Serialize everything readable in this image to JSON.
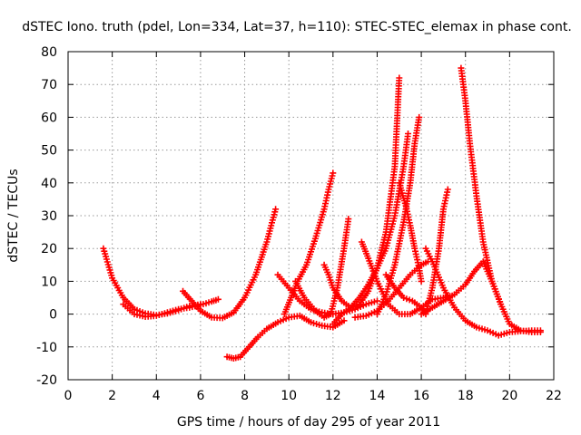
{
  "chart_data": {
    "type": "scatter",
    "title": "dSTEC Iono. truth (pdel, Lon=334, Lat=37, h=110): STEC-STEC_elemax in phase cont.",
    "xlabel": "GPS time / hours of day 295 of year 2011",
    "ylabel": "dSTEC  / TECUs",
    "xlim": [
      0,
      22
    ],
    "ylim": [
      -20,
      80
    ],
    "xticks": [
      "0",
      "2",
      "4",
      "6",
      "8",
      "10",
      "12",
      "14",
      "16",
      "18",
      "20",
      "22"
    ],
    "yticks": [
      "-20",
      "-10",
      "0",
      "10",
      "20",
      "30",
      "40",
      "50",
      "60",
      "70",
      "80"
    ],
    "grid": true,
    "marker": "+",
    "color": "#ff0000",
    "series": [
      {
        "x": [
          1.6,
          2.0,
          2.5,
          3.0,
          3.5,
          4.0,
          4.5,
          5.0,
          5.5,
          6.0
        ],
        "y": [
          20,
          11,
          5,
          1.5,
          0.2,
          -0.3,
          0.2,
          1.2,
          2.5,
          3.0
        ]
      },
      {
        "x": [
          2.5,
          3.0,
          3.5,
          4.0,
          4.5,
          5.0,
          5.5,
          6.0,
          6.5,
          6.8
        ],
        "y": [
          3,
          0,
          -0.8,
          -0.5,
          0.5,
          1.5,
          2.0,
          2.8,
          3.8,
          4.5
        ]
      },
      {
        "x": [
          5.2,
          5.6,
          6.0,
          6.5,
          7.0,
          7.5,
          8.0,
          8.5,
          9.0,
          9.4
        ],
        "y": [
          7,
          4,
          1,
          -1,
          -1.2,
          0.5,
          5,
          12,
          22,
          32
        ]
      },
      {
        "x": [
          7.2,
          7.5,
          7.8,
          8.2,
          8.6,
          9.0,
          9.5,
          10.0,
          10.5,
          11.0,
          11.5,
          12.0,
          12.5
        ],
        "y": [
          -13,
          -13.5,
          -13,
          -10,
          -7,
          -4.5,
          -2.5,
          -1,
          -0.5,
          -2.5,
          -3.5,
          -4,
          -2
        ]
      },
      {
        "x": [
          9.5,
          10.0,
          10.5,
          11.0,
          11.5,
          12.0,
          12.5,
          13.0,
          13.5,
          14.0
        ],
        "y": [
          12,
          8,
          4,
          1.5,
          0.5,
          0,
          0.5,
          1.5,
          3,
          4
        ]
      },
      {
        "x": [
          9.8,
          10.1,
          10.4,
          10.8,
          11.2,
          11.6,
          11.8,
          12.0
        ],
        "y": [
          0,
          5,
          10,
          15,
          23,
          32,
          38,
          43
        ]
      },
      {
        "x": [
          10.3,
          10.7,
          11.2,
          11.6,
          11.9,
          12.2,
          12.5,
          12.7
        ],
        "y": [
          10,
          5,
          1,
          -1,
          0,
          8,
          20,
          29
        ]
      },
      {
        "x": [
          11.6,
          11.8,
          12.0,
          12.4,
          12.8,
          13.2,
          13.6,
          14.0,
          14.4,
          14.8,
          15.0
        ],
        "y": [
          15,
          12,
          8,
          4,
          2,
          3,
          7,
          14,
          25,
          45,
          72
        ]
      },
      {
        "x": [
          12.0,
          12.4,
          12.8,
          13.2,
          13.6,
          14.0,
          14.4,
          14.8,
          15.2,
          15.4
        ],
        "y": [
          -3,
          0,
          2,
          5,
          9,
          14,
          20,
          30,
          45,
          55
        ]
      },
      {
        "x": [
          13.3,
          13.6,
          14.0,
          14.5,
          15.0,
          15.5,
          16.0,
          16.5,
          17.0,
          17.3
        ],
        "y": [
          22,
          17,
          10,
          3,
          0,
          0,
          2,
          4.5,
          5,
          5.5
        ]
      },
      {
        "x": [
          13.0,
          13.5,
          14.0,
          14.5,
          15.0,
          15.5,
          16.0,
          16.3
        ],
        "y": [
          -1,
          -0.5,
          1,
          4,
          8,
          12,
          15,
          16
        ]
      },
      {
        "x": [
          14.0,
          14.4,
          14.8,
          15.2,
          15.5,
          15.7,
          15.9
        ],
        "y": [
          0,
          6,
          15,
          28,
          40,
          52,
          60
        ]
      },
      {
        "x": [
          15.0,
          15.3,
          15.5,
          15.7,
          15.9,
          16.0
        ],
        "y": [
          40,
          33,
          27,
          20,
          14,
          10
        ]
      },
      {
        "x": [
          14.4,
          14.8,
          15.2,
          15.6,
          16.0,
          16.2,
          16.5,
          16.8,
          17.0,
          17.2
        ],
        "y": [
          12,
          8,
          5,
          4,
          2,
          0,
          8,
          20,
          32,
          38
        ]
      },
      {
        "x": [
          16.2,
          16.5,
          17.0,
          17.5,
          18.0,
          18.5,
          19.0,
          19.5,
          20.0,
          20.5,
          21.0,
          21.4
        ],
        "y": [
          20,
          16,
          8,
          2,
          -2,
          -4,
          -5,
          -6.5,
          -5.5,
          -5.2,
          -5,
          -5
        ]
      },
      {
        "x": [
          16.0,
          16.5,
          17.0,
          17.5,
          18.0,
          18.4,
          18.8,
          19.2,
          19.6
        ],
        "y": [
          0,
          2,
          4,
          6,
          9,
          13,
          16,
          10,
          3
        ]
      },
      {
        "x": [
          17.8,
          18.0,
          18.2,
          18.5,
          18.8,
          19.2,
          19.6,
          20.0,
          20.5,
          21.0,
          21.4
        ],
        "y": [
          75,
          65,
          52,
          36,
          22,
          10,
          3,
          -3,
          -5,
          -5.5,
          -5.5
        ]
      }
    ]
  }
}
